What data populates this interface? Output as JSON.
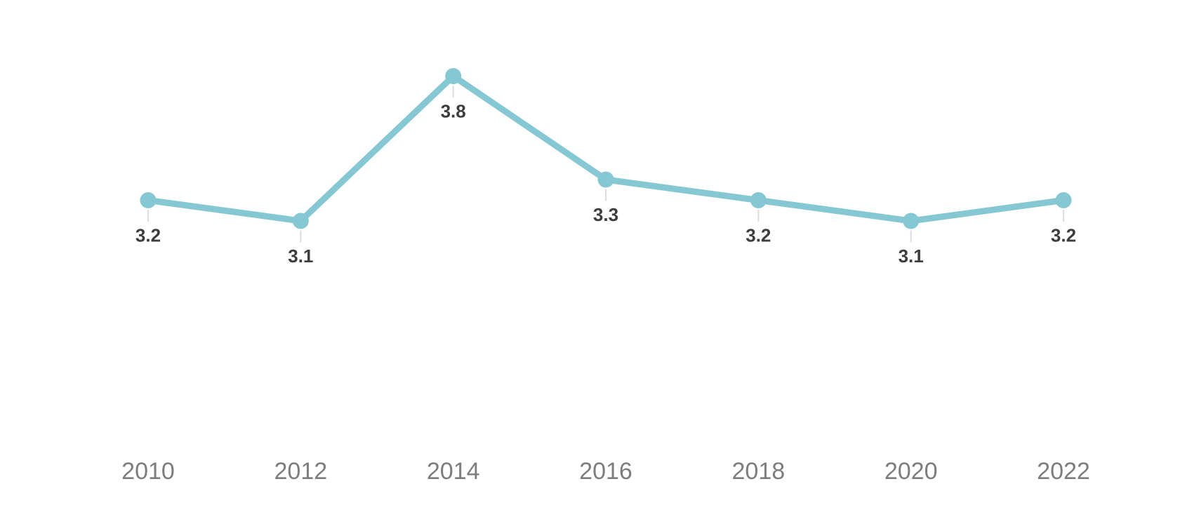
{
  "chart_data": {
    "type": "line",
    "categories": [
      "2010",
      "2012",
      "2014",
      "2016",
      "2018",
      "2020",
      "2022"
    ],
    "values": [
      3.2,
      3.1,
      3.8,
      3.3,
      3.2,
      3.1,
      3.2
    ],
    "value_labels": [
      "3.2",
      "3.1",
      "3.8",
      "3.3",
      "3.2",
      "3.1",
      "3.2"
    ],
    "title": "",
    "xlabel": "",
    "ylabel": "",
    "ylim": [
      2.0,
      4.0
    ],
    "grid": false,
    "legend_position": "none",
    "colors": {
      "line": "#85c8d3",
      "marker": "#85c8d3",
      "value_label": "#3d3d3d",
      "axis_label": "#7d7d7d",
      "connector": "#dcdcdc",
      "background": "#ffffff"
    }
  }
}
